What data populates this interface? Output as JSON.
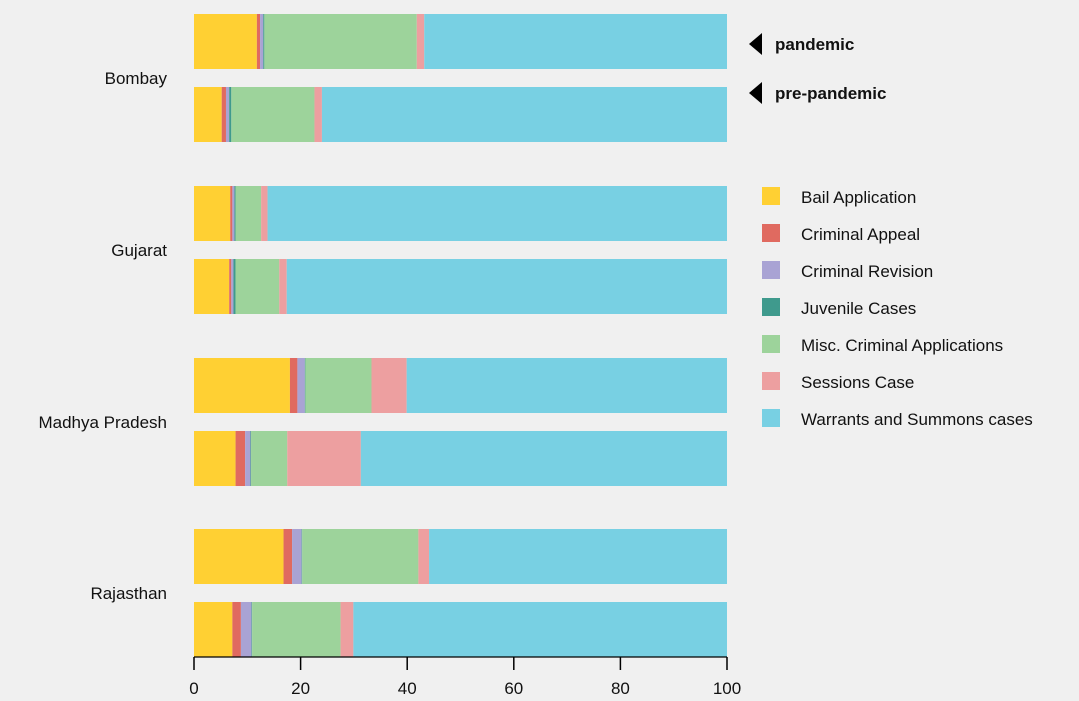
{
  "chart_data": {
    "type": "bar",
    "orientation": "horizontal",
    "stacked": true,
    "categories": [
      "Bombay",
      "Gujarat",
      "Madhya Pradesh",
      "Rajasthan"
    ],
    "periods": [
      "pandemic",
      "pre-pandemic"
    ],
    "annotations": [
      "pandemic",
      "pre-pandemic"
    ],
    "series": [
      {
        "name": "Bail Application",
        "color": "#FFD033",
        "pandemic": [
          11.8,
          6.8,
          18.0,
          16.8
        ],
        "pre_pandemic": [
          5.2,
          6.6,
          7.8,
          7.2
        ]
      },
      {
        "name": "Criminal Appeal",
        "color": "#E06A60",
        "pandemic": [
          0.6,
          0.4,
          1.4,
          1.6
        ],
        "pre_pandemic": [
          0.8,
          0.4,
          1.8,
          1.6
        ]
      },
      {
        "name": "Criminal Revision",
        "color": "#A9A3D4",
        "pandemic": [
          0.6,
          0.4,
          1.4,
          1.8
        ],
        "pre_pandemic": [
          0.6,
          0.4,
          1.0,
          2.0
        ]
      },
      {
        "name": "Juvenile Cases",
        "color": "#3F9A8D",
        "pandemic": [
          0.2,
          0.2,
          0.1,
          0.1
        ],
        "pre_pandemic": [
          0.4,
          0.4,
          0.1,
          0.1
        ]
      },
      {
        "name": "Misc. Criminal Applications",
        "color": "#9DD39B",
        "pandemic": [
          28.6,
          4.8,
          12.4,
          21.8
        ],
        "pre_pandemic": [
          15.6,
          8.2,
          6.8,
          16.6
        ]
      },
      {
        "name": "Sessions Case",
        "color": "#ED9FA0",
        "pandemic": [
          1.4,
          1.2,
          6.6,
          2.0
        ],
        "pre_pandemic": [
          1.4,
          1.4,
          13.8,
          2.4
        ]
      },
      {
        "name": "Warrants and Summons cases",
        "color": "#78D0E3",
        "pandemic": [
          56.8,
          86.2,
          60.1,
          55.9
        ],
        "pre_pandemic": [
          76.0,
          82.6,
          68.7,
          70.1
        ]
      }
    ],
    "xlim": [
      0,
      100
    ],
    "xticks": [
      "0",
      "20",
      "40",
      "60",
      "80",
      "100"
    ],
    "legend_position": "right",
    "grid": false
  }
}
